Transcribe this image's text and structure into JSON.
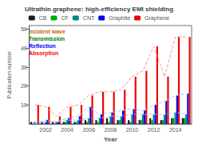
{
  "chart_data": {
    "type": "bar",
    "title": "Ultrathin graphene: high-efficiency EMI shielding",
    "xlabel": "Year",
    "ylabel": "Publication number",
    "categories": [
      null,
      "2002",
      null,
      "2004",
      null,
      "2006",
      null,
      "2008",
      null,
      "2010",
      null,
      "2012",
      null,
      "2014",
      null
    ],
    "series": [
      {
        "name": "CB",
        "color": "#1a1a1a",
        "values": [
          1,
          1,
          1,
          1,
          1,
          2,
          2,
          3,
          2,
          2,
          2,
          3,
          2,
          3,
          3
        ]
      },
      {
        "name": "CF",
        "color": "#00aa00",
        "values": [
          0,
          0,
          0,
          1,
          1,
          1,
          1,
          1,
          2,
          1,
          2,
          2,
          2,
          3,
          3
        ]
      },
      {
        "name": "CNT",
        "color": "#008888",
        "values": [
          1,
          1,
          1,
          2,
          2,
          3,
          3,
          4,
          4,
          5,
          5,
          5,
          5,
          6,
          5
        ]
      },
      {
        "name": "Graphite",
        "color": "#0000ee",
        "values": [
          0,
          2,
          1,
          3,
          4,
          9,
          5,
          6,
          7,
          8,
          7,
          10,
          12,
          15,
          16
        ]
      },
      {
        "name": "Graphene",
        "color": "#ee0000",
        "values": [
          10,
          9,
          4,
          9,
          10,
          15,
          17,
          17,
          18,
          25,
          28,
          41,
          25,
          46,
          46
        ]
      },
      {
        "type": "line",
        "line_style": "dashed",
        "color": "#FF8888",
        "values": [
          10,
          9,
          4,
          9,
          10,
          15,
          17,
          17,
          18,
          25,
          28,
          41,
          25,
          46,
          46
        ]
      },
      {
        "type": "line",
        "line_style": "dashed",
        "color": "#88CCFF",
        "values": [
          0,
          2,
          1,
          3,
          4,
          9,
          5,
          6,
          7,
          8,
          7,
          10,
          12,
          15,
          16
        ]
      },
      {
        "type": "line",
        "line_style": "dashed",
        "color": "#88CCFF",
        "values": [
          1,
          1,
          1,
          2,
          2,
          3,
          3,
          4,
          4,
          5,
          5,
          5,
          5,
          6,
          5
        ]
      }
    ],
    "ylim": [
      0,
      52
    ],
    "yticks": [
      10,
      20,
      30,
      40,
      50
    ],
    "grid": false,
    "legend": "top",
    "annotations": [
      {
        "text": "Incident wave",
        "color": "#CC6600"
      },
      {
        "text": "Transmission",
        "color": "green"
      },
      {
        "text": "Reflection",
        "color": "blue"
      },
      {
        "text": "Absorption",
        "color": "red"
      }
    ]
  }
}
